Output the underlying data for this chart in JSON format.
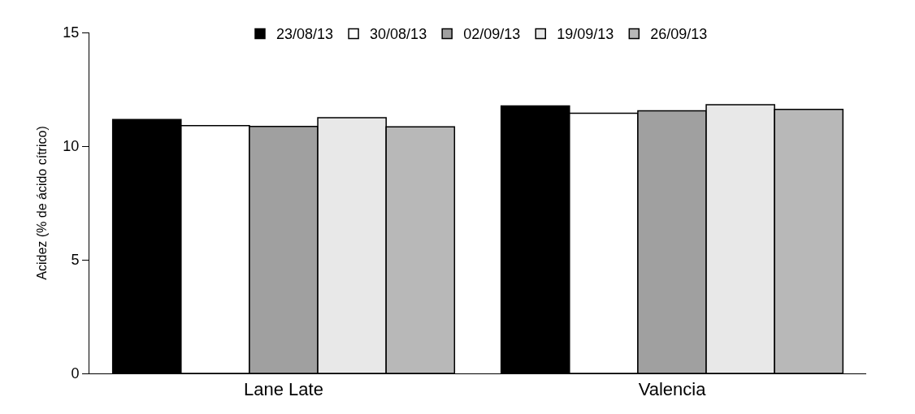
{
  "chart_data": {
    "type": "bar",
    "ylabel": "Acidez (% de ácido cítrico)",
    "categories": [
      "Lane Late",
      "Valencia"
    ],
    "series": [
      {
        "name": "23/08/13",
        "color": "#000000",
        "values": [
          11.17,
          11.77
        ]
      },
      {
        "name": "30/08/13",
        "color": "#ffffff",
        "values": [
          10.9,
          11.45
        ]
      },
      {
        "name": "02/09/13",
        "color": "#a0a0a0",
        "values": [
          10.87,
          11.55
        ]
      },
      {
        "name": "19/09/13",
        "color": "#e8e8e8",
        "values": [
          11.25,
          11.82
        ]
      },
      {
        "name": "26/09/13",
        "color": "#b8b8b8",
        "values": [
          10.85,
          11.62
        ]
      }
    ],
    "ylim": [
      0,
      15
    ],
    "yticks": [
      0,
      5,
      10,
      15
    ],
    "legend": "top"
  }
}
